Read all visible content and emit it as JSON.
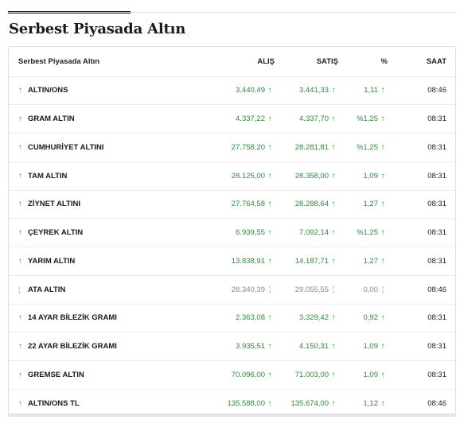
{
  "title": "Serbest Piyasada Altın",
  "table": {
    "headers": {
      "name": "Serbest Piyasada Altın",
      "alis": "ALIŞ",
      "satis": "SATIŞ",
      "pct": "%",
      "saat": "SAAT"
    },
    "rows": [
      {
        "dir": "↑",
        "name": "ALTIN/ONS",
        "alis": "3.440,49",
        "alis_arrow": "↑",
        "satis": "3.441,33",
        "satis_arrow": "↑",
        "pct": "1,11",
        "pct_arrow": "↑",
        "saat": "08:46"
      },
      {
        "dir": "↑",
        "name": "GRAM ALTIN",
        "alis": "4.337,22",
        "alis_arrow": "↑",
        "satis": "4.337,70",
        "satis_arrow": "↑",
        "pct": "%1,25",
        "pct_arrow": "↑",
        "saat": "08:31"
      },
      {
        "dir": "↑",
        "name": "CUMHURİYET ALTINI",
        "alis": "27.758,20",
        "alis_arrow": "↑",
        "satis": "28.281,81",
        "satis_arrow": "↑",
        "pct": "%1,25",
        "pct_arrow": "↑",
        "saat": "08:31"
      },
      {
        "dir": "↑",
        "name": "TAM ALTIN",
        "alis": "28.125,00",
        "alis_arrow": "↑",
        "satis": "28.358,00",
        "satis_arrow": "↑",
        "pct": "1,09",
        "pct_arrow": "↑",
        "saat": "08:31"
      },
      {
        "dir": "↑",
        "name": "ZİYNET ALTINI",
        "alis": "27.764,58",
        "alis_arrow": "↑",
        "satis": "28.288,64",
        "satis_arrow": "↑",
        "pct": "1,27",
        "pct_arrow": "↑",
        "saat": "08:31"
      },
      {
        "dir": "↑",
        "name": "ÇEYREK ALTIN",
        "alis": "6.939,55",
        "alis_arrow": "↑",
        "satis": "7.092,14",
        "satis_arrow": "↑",
        "pct": "%1,25",
        "pct_arrow": "↑",
        "saat": "08:31"
      },
      {
        "dir": "↑",
        "name": "YARIM ALTIN",
        "alis": "13.838,91",
        "alis_arrow": "↑",
        "satis": "14.187,71",
        "satis_arrow": "↑",
        "pct": "1,27",
        "pct_arrow": "↑",
        "saat": "08:31"
      },
      {
        "dir": "¦",
        "name": "ATA ALTIN",
        "alis": "28.340,39",
        "alis_arrow": "¦",
        "satis": "29.055,55",
        "satis_arrow": "¦",
        "pct": "0,00",
        "pct_arrow": "¦",
        "saat": "08:46",
        "neutral": true
      },
      {
        "dir": "↑",
        "name": "14 AYAR BİLEZİK GRAMI",
        "alis": "2.363,08",
        "alis_arrow": "↑",
        "satis": "3.329,42",
        "satis_arrow": "↑",
        "pct": "0,92",
        "pct_arrow": "↑",
        "saat": "08:31"
      },
      {
        "dir": "↑",
        "name": "22 AYAR BİLEZİK GRAMI",
        "alis": "3.935,51",
        "alis_arrow": "↑",
        "satis": "4.150,31",
        "satis_arrow": "↑",
        "pct": "1,09",
        "pct_arrow": "↑",
        "saat": "08:31"
      },
      {
        "dir": "↑",
        "name": "GREMSE ALTIN",
        "alis": "70.096,00",
        "alis_arrow": "↑",
        "satis": "71.003,00",
        "satis_arrow": "↑",
        "pct": "1,09",
        "pct_arrow": "↑",
        "saat": "08:31"
      },
      {
        "dir": "↑",
        "name": "ALTIN/ONS TL",
        "alis": "135.588,00",
        "alis_arrow": "↑",
        "satis": "135.674,00",
        "satis_arrow": "↑",
        "pct": "1,12",
        "pct_arrow": "↑",
        "saat": "08:46"
      }
    ]
  },
  "colors": {
    "up": "#2e8b3d",
    "neutral": "#8a8a8a",
    "text": "#1a1a1a"
  },
  "icons": {
    "up": "arrow-up-icon",
    "neutral": "neutral-bar-icon"
  }
}
